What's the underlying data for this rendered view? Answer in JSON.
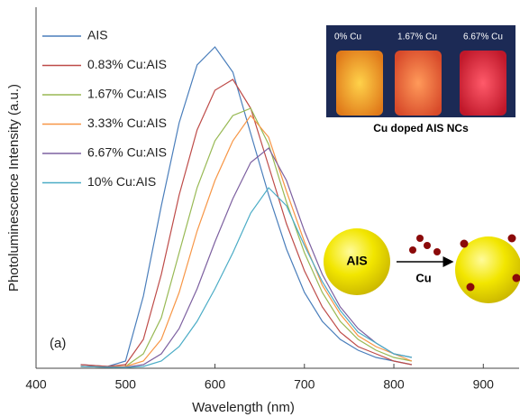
{
  "chart_data": {
    "type": "line",
    "x_label": "Wavelength (nm)",
    "y_label": "Photoluminescence Intensity (a.u.)",
    "x": [
      450,
      480,
      500,
      520,
      540,
      560,
      580,
      600,
      620,
      640,
      660,
      680,
      700,
      720,
      740,
      760,
      780,
      800,
      820
    ],
    "series": [
      {
        "name": "AIS",
        "color": "#4a7ebb",
        "values": [
          0.01,
          0.005,
          0.02,
          0.2,
          0.45,
          0.68,
          0.84,
          0.89,
          0.82,
          0.65,
          0.48,
          0.33,
          0.21,
          0.13,
          0.08,
          0.05,
          0.03,
          0.02,
          0.01
        ]
      },
      {
        "name": "0.83% Cu:AIS",
        "color": "#be4b48",
        "values": [
          0.01,
          0.005,
          0.01,
          0.08,
          0.26,
          0.48,
          0.66,
          0.77,
          0.8,
          0.72,
          0.56,
          0.4,
          0.27,
          0.17,
          0.1,
          0.06,
          0.04,
          0.02,
          0.01
        ]
      },
      {
        "name": "1.67% Cu:AIS",
        "color": "#98b954",
        "values": [
          0.005,
          0.003,
          0.005,
          0.04,
          0.14,
          0.32,
          0.5,
          0.63,
          0.7,
          0.72,
          0.62,
          0.46,
          0.32,
          0.21,
          0.13,
          0.08,
          0.05,
          0.03,
          0.02
        ]
      },
      {
        "name": "3.33% Cu:AIS",
        "color": "#f79646",
        "values": [
          0.005,
          0.003,
          0.005,
          0.02,
          0.08,
          0.21,
          0.38,
          0.52,
          0.63,
          0.7,
          0.64,
          0.49,
          0.35,
          0.23,
          0.15,
          0.09,
          0.06,
          0.04,
          0.02
        ]
      },
      {
        "name": "6.67% Cu:AIS",
        "color": "#7d60a0",
        "values": [
          0.005,
          0.003,
          0.003,
          0.01,
          0.04,
          0.11,
          0.22,
          0.35,
          0.47,
          0.57,
          0.61,
          0.52,
          0.38,
          0.26,
          0.17,
          0.11,
          0.07,
          0.04,
          0.03
        ]
      },
      {
        "name": "10% Cu:AIS",
        "color": "#4bacc6",
        "values": [
          0.005,
          0.003,
          0.002,
          0.005,
          0.02,
          0.06,
          0.13,
          0.22,
          0.32,
          0.43,
          0.5,
          0.45,
          0.34,
          0.24,
          0.16,
          0.1,
          0.07,
          0.04,
          0.03
        ]
      }
    ],
    "xlim": [
      400,
      940
    ],
    "xticks": [
      400,
      500,
      600,
      700,
      800,
      900
    ],
    "ylim": [
      0,
      1
    ],
    "legend": "upper left",
    "annotations": [
      "(a)",
      "0% Cu",
      "1.67% Cu",
      "6.67% Cu",
      "Cu doped AIS NCs",
      "AIS",
      "Cu"
    ]
  }
}
